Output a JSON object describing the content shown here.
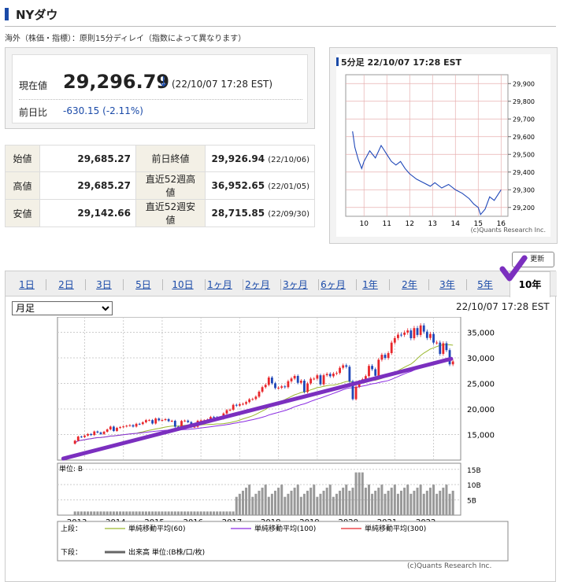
{
  "header": {
    "title": "NYダウ",
    "note": "海外（株価・指標）：原則15分ディレイ（指数によって異なります）"
  },
  "price": {
    "label": "現在値",
    "value": "29,296.79",
    "arrow": "↓",
    "time": "(22/10/07 17:28 EST)",
    "change_label": "前日比",
    "change": "-630.15 (-2.11%)"
  },
  "stats": [
    {
      "label": "始値",
      "value": "29,685.27",
      "label2": "前日終値",
      "value2": "29,926.94",
      "date2": "(22/10/06)"
    },
    {
      "label": "高値",
      "value": "29,685.27",
      "label2": "直近52週高値",
      "value2": "36,952.65",
      "date2": "(22/01/05)"
    },
    {
      "label": "安値",
      "value": "29,142.66",
      "label2": "直近52週安値",
      "value2": "28,715.85",
      "date2": "(22/09/30)"
    }
  ],
  "intraday": {
    "title": "5分足 22/10/07 17:28 EST",
    "copyright": "(c)Quants Research Inc."
  },
  "refresh_label": "更新",
  "tabs": [
    "1日",
    "2日",
    "3日",
    "5日",
    "10日",
    "1ヶ月",
    "2ヶ月",
    "3ヶ月",
    "6ヶ月",
    "1年",
    "2年",
    "3年",
    "5年",
    "10年"
  ],
  "active_tab": "10年",
  "period_select": {
    "value": "月足",
    "options": [
      "月足"
    ]
  },
  "chart_time": "22/10/07 17:28 EST",
  "legend": {
    "upper_label": "上段：",
    "ma60": "単純移動平均(60)",
    "ma100": "単純移動平均(100)",
    "ma300": "単純移動平均(300)",
    "lower_label": "下段：",
    "volume": "出来高 単位:(B株/口/枚)"
  },
  "volume_unit": "単位: B",
  "copyright": "(c)Quants Research Inc.",
  "colors": {
    "up": "#e8262b",
    "down": "#1f47b8",
    "ma60": "#9ab82e",
    "ma100": "#8a2be2",
    "ma300": "#e8262b",
    "trend": "#7b2fbf",
    "volume": "#999999"
  },
  "chart_data": [
    {
      "type": "line",
      "title": "5分足 22/10/07 17:28 EST",
      "x_ticks": [
        "10",
        "11",
        "12",
        "13",
        "14",
        "15",
        "16"
      ],
      "y_ticks": [
        "29,200",
        "29,300",
        "29,400",
        "29,500",
        "29,600",
        "29,700",
        "29,800",
        "29,900"
      ],
      "ylim": [
        29150,
        29950
      ],
      "x": [
        9.5,
        9.6,
        9.75,
        9.9,
        10.0,
        10.25,
        10.5,
        10.75,
        10.85,
        11.0,
        11.2,
        11.4,
        11.6,
        11.8,
        12.0,
        12.3,
        12.6,
        12.9,
        13.1,
        13.4,
        13.7,
        14.0,
        14.3,
        14.6,
        14.8,
        15.0,
        15.1,
        15.3,
        15.5,
        15.7,
        15.9,
        16.0
      ],
      "y": [
        29630,
        29540,
        29470,
        29420,
        29460,
        29520,
        29480,
        29550,
        29530,
        29500,
        29460,
        29440,
        29460,
        29420,
        29390,
        29360,
        29340,
        29320,
        29340,
        29310,
        29330,
        29300,
        29280,
        29250,
        29220,
        29200,
        29160,
        29190,
        29260,
        29240,
        29280,
        29300
      ]
    },
    {
      "type": "candlestick",
      "x_ticks": [
        "2013",
        "2014",
        "2015",
        "2016",
        "2017",
        "2018",
        "2019",
        "2020",
        "2021",
        "2022"
      ],
      "y_ticks": [
        "15,000",
        "20,000",
        "25,000",
        "30,000",
        "35,000"
      ],
      "ylim": [
        10000,
        38000
      ],
      "trend_line": {
        "start": [
          2012.95,
          10300
        ],
        "end": [
          2022.75,
          29200
        ]
      },
      "close": [
        13800,
        14600,
        14500,
        14800,
        15100,
        14900,
        15600,
        15400,
        15100,
        15550,
        16000,
        16550,
        15700,
        16300,
        16450,
        16580,
        16720,
        16830,
        16560,
        17100,
        17040,
        17400,
        17820,
        17820,
        17160,
        18130,
        17780,
        17840,
        18010,
        17620,
        17690,
        16530,
        16280,
        17660,
        17720,
        17430,
        16470,
        16520,
        17690,
        17770,
        17790,
        17930,
        18430,
        18400,
        18310,
        18140,
        19120,
        19760,
        19860,
        20810,
        20660,
        20940,
        21010,
        21350,
        21890,
        21950,
        22410,
        23380,
        24270,
        24720,
        26150,
        25030,
        24100,
        24160,
        24420,
        24270,
        25420,
        25960,
        26460,
        25120,
        25540,
        23330,
        25000,
        25920,
        25930,
        26590,
        24820,
        26600,
        26860,
        26400,
        26920,
        27050,
        28050,
        28540,
        28260,
        25410,
        21920,
        24350,
        25380,
        25810,
        26430,
        28430,
        27780,
        26500,
        29640,
        30600,
        29980,
        30930,
        32980,
        33870,
        34530,
        34500,
        34940,
        35360,
        33840,
        35820,
        34480,
        36340,
        35130,
        33890,
        34680,
        32980,
        32990,
        30780,
        32850,
        31510,
        28730,
        29300
      ],
      "ma60_end": 30000,
      "ma100_end": 24600,
      "ma300_end": null
    }
  ]
}
